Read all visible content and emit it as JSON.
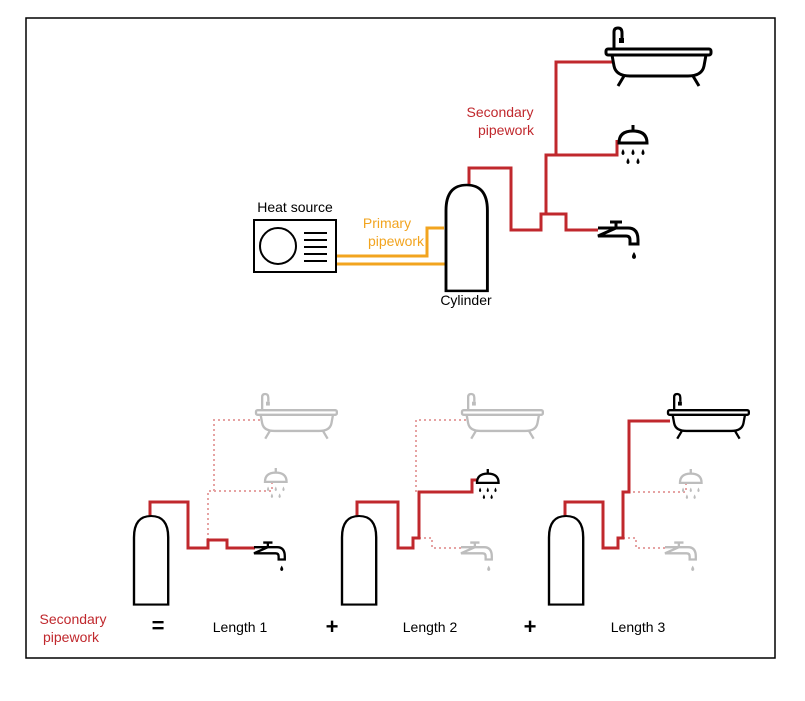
{
  "colors": {
    "secondary": "#c0282d",
    "primary": "#f2a41f",
    "outline": "#000000",
    "faded": "#bdbdbd",
    "faded_pipe": "#e6a3a3",
    "frame": "#000000"
  },
  "top": {
    "heat_source_label": "Heat source",
    "primary_label_line1": "Primary",
    "primary_label_line2": "pipework",
    "secondary_label_line1": "Secondary",
    "secondary_label_line2": "pipework",
    "cylinder_label": "Cylinder",
    "icons": [
      "heat-pump-icon",
      "cylinder-icon",
      "bath-icon",
      "shower-icon",
      "tap-icon"
    ]
  },
  "equation": {
    "lhs_line1": "Secondary",
    "lhs_line2": "pipework",
    "equals": "=",
    "plus1": "+",
    "plus2": "+",
    "length1": "Length 1",
    "length2": "Length 2",
    "length3": "Length 3"
  }
}
